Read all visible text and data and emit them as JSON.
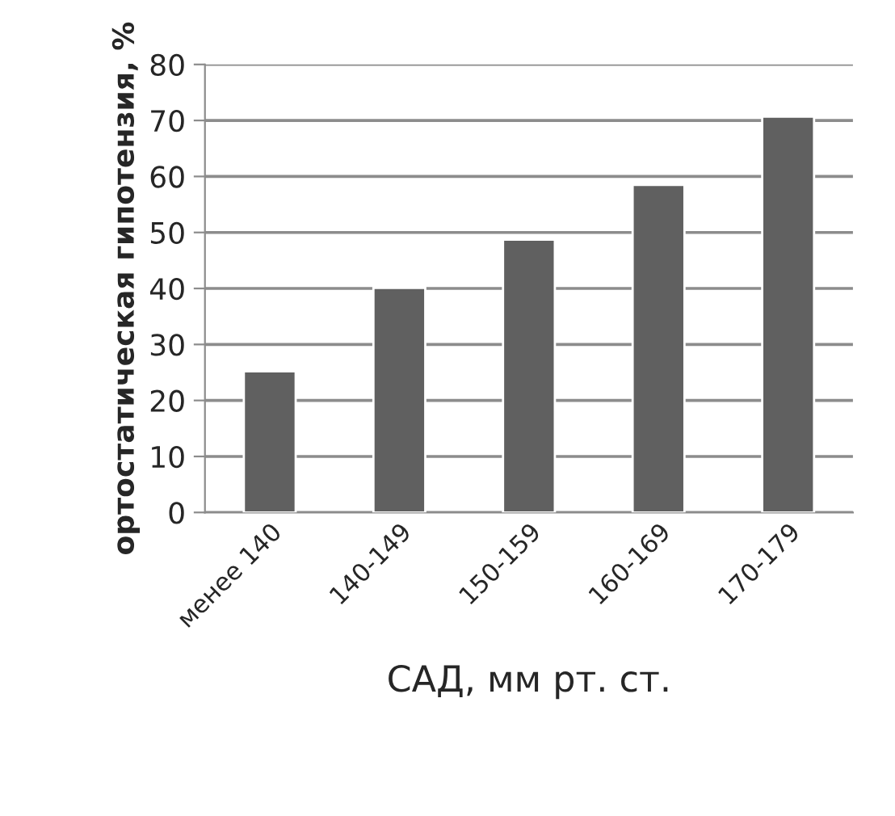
{
  "chart_data": {
    "type": "bar",
    "xlabel": "САД, мм рт. ст.",
    "ylabel": "ортостатическая гипотензия, %",
    "categories": [
      "менее 140",
      "140-149",
      "150-159",
      "160-169",
      "170-179"
    ],
    "values": [
      25.2,
      40.1,
      48.7,
      58.5,
      70.7
    ],
    "color": "#606060",
    "ylim": [
      0,
      80
    ],
    "yticks": [
      0,
      10,
      20,
      30,
      40,
      50,
      60,
      70,
      80
    ],
    "grid": "y"
  }
}
